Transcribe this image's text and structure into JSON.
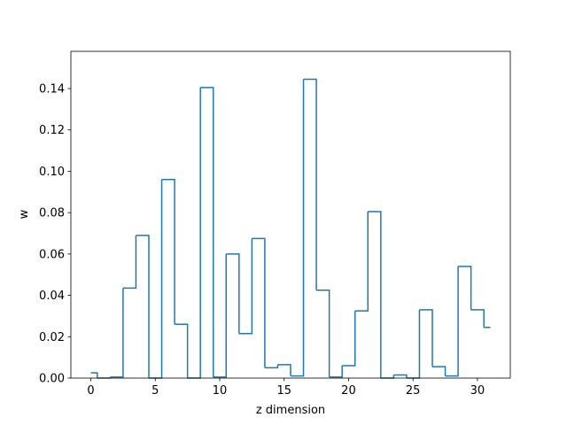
{
  "chart_data": {
    "type": "line",
    "drawstyle": "steps-mid",
    "title": "",
    "xlabel": "z dimension",
    "ylabel": "w",
    "xlim": [
      -1.55,
      32.55
    ],
    "ylim": [
      0,
      0.158
    ],
    "x_ticks": [
      0,
      5,
      10,
      15,
      20,
      25,
      30
    ],
    "x_tick_labels": [
      "0",
      "5",
      "10",
      "15",
      "20",
      "25",
      "30"
    ],
    "y_ticks": [
      0,
      0.02,
      0.04,
      0.06,
      0.08,
      0.1,
      0.12,
      0.14
    ],
    "y_tick_labels": [
      "0.00",
      "0.02",
      "0.04",
      "0.06",
      "0.08",
      "0.10",
      "0.12",
      "0.14"
    ],
    "grid": false,
    "line_color": "#1f77b4",
    "x": [
      0,
      1,
      2,
      3,
      4,
      5,
      6,
      7,
      8,
      9,
      10,
      11,
      12,
      13,
      14,
      15,
      16,
      17,
      18,
      19,
      20,
      21,
      22,
      23,
      24,
      25,
      26,
      27,
      28,
      29,
      30,
      31
    ],
    "values": [
      0.0025,
      0.0,
      0.0005,
      0.0435,
      0.069,
      0.0,
      0.096,
      0.026,
      0.0,
      0.1405,
      0.0005,
      0.06,
      0.0215,
      0.0675,
      0.005,
      0.0065,
      0.001,
      0.1445,
      0.0425,
      0.0005,
      0.006,
      0.0325,
      0.0805,
      0.0,
      0.0015,
      0.0,
      0.033,
      0.0055,
      0.001,
      0.054,
      0.033,
      0.0245
    ]
  }
}
